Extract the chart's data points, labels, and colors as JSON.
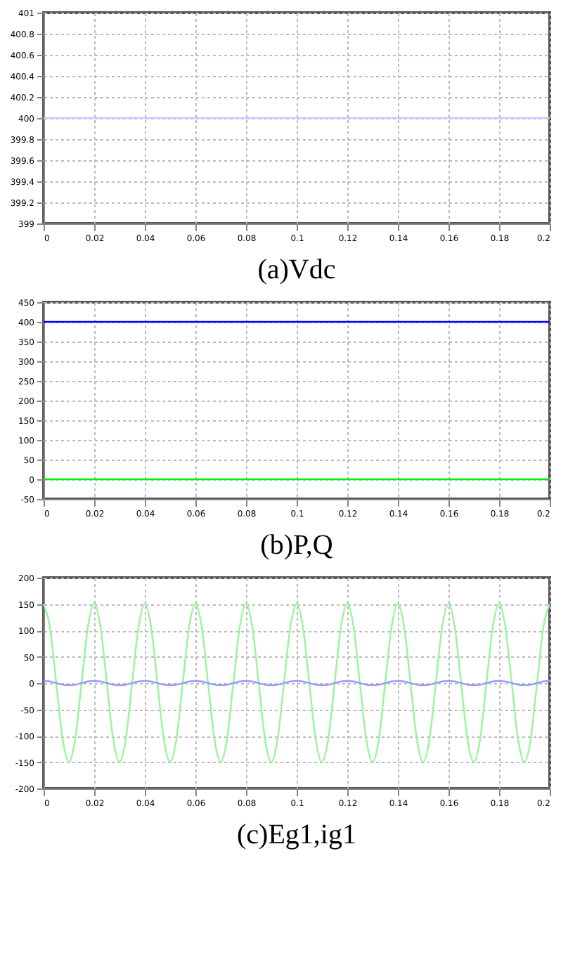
{
  "chart_data": [
    {
      "type": "line",
      "title": "(a)Vdc",
      "grid": true,
      "xlim": [
        0,
        0.2
      ],
      "ylim": [
        399,
        401
      ],
      "xticks": [
        0,
        0.02,
        0.04,
        0.06,
        0.08,
        0.1,
        0.12,
        0.14,
        0.16,
        0.18,
        0.2
      ],
      "yticks": [
        399,
        399.2,
        399.4,
        399.6,
        399.8,
        400,
        400.2,
        400.4,
        400.6,
        400.8,
        401
      ],
      "x": [
        0,
        0.02,
        0.04,
        0.06,
        0.08,
        0.1,
        0.12,
        0.14,
        0.16,
        0.18,
        0.2
      ],
      "series": [
        {
          "color": "#c8c8ff",
          "values": [
            400,
            400,
            400,
            400,
            400,
            400,
            400,
            400,
            400,
            400,
            400
          ]
        }
      ]
    },
    {
      "type": "line",
      "title": "(b)P,Q",
      "grid": true,
      "xlim": [
        0,
        0.2
      ],
      "ylim": [
        -50,
        450
      ],
      "xticks": [
        0,
        0.02,
        0.04,
        0.06,
        0.08,
        0.1,
        0.12,
        0.14,
        0.16,
        0.18,
        0.2
      ],
      "yticks": [
        -50,
        0,
        50,
        100,
        150,
        200,
        250,
        300,
        350,
        400,
        450
      ],
      "x": [
        0,
        0.02,
        0.04,
        0.06,
        0.08,
        0.1,
        0.12,
        0.14,
        0.16,
        0.18,
        0.2
      ],
      "series": [
        {
          "color": "#0000ff",
          "values": [
            400,
            400,
            400,
            400,
            400,
            400,
            400,
            400,
            400,
            400,
            400
          ]
        },
        {
          "color": "#00ee00",
          "values": [
            0,
            0,
            0,
            0,
            0,
            0,
            0,
            0,
            0,
            0,
            0
          ]
        }
      ]
    },
    {
      "type": "line",
      "title": "(c)Eg1,ig1",
      "grid": true,
      "xlim": [
        0,
        0.2
      ],
      "ylim": [
        -200,
        200
      ],
      "xticks": [
        0,
        0.02,
        0.04,
        0.06,
        0.08,
        0.1,
        0.12,
        0.14,
        0.16,
        0.18,
        0.2
      ],
      "yticks": [
        -200,
        -150,
        -100,
        -50,
        0,
        50,
        100,
        150,
        200
      ],
      "x": [
        0,
        0.0025,
        0.005,
        0.0075,
        0.01,
        0.0125,
        0.015,
        0.0175,
        0.02,
        0.0225,
        0.025,
        0.0275,
        0.03,
        0.0325,
        0.035,
        0.0375,
        0.04,
        0.0425,
        0.045,
        0.0475,
        0.05,
        0.0525,
        0.055,
        0.0575,
        0.06,
        0.0625,
        0.065,
        0.0675,
        0.07,
        0.0725,
        0.075,
        0.0775,
        0.08,
        0.0825,
        0.085,
        0.0875,
        0.09,
        0.0925,
        0.095,
        0.0975,
        0.1,
        0.1025,
        0.105,
        0.1075,
        0.11,
        0.1125,
        0.115,
        0.1175,
        0.12,
        0.1225,
        0.125,
        0.1275,
        0.13,
        0.1325,
        0.135,
        0.1375,
        0.14,
        0.1425,
        0.145,
        0.1475,
        0.15,
        0.1525,
        0.155,
        0.1575,
        0.16,
        0.1625,
        0.165,
        0.1675,
        0.17,
        0.1725,
        0.175,
        0.1775,
        0.18,
        0.1825,
        0.185,
        0.1875,
        0.19,
        0.1925,
        0.195,
        0.1975,
        0.2
      ],
      "series": [
        {
          "color": "#99f599",
          "values": [
            150,
            106,
            0,
            -106,
            -150,
            -106,
            0,
            106,
            150,
            106,
            0,
            -106,
            -150,
            -106,
            0,
            106,
            150,
            106,
            0,
            -106,
            -150,
            -106,
            0,
            106,
            150,
            106,
            0,
            -106,
            -150,
            -106,
            0,
            106,
            150,
            106,
            0,
            -106,
            -150,
            -106,
            0,
            106,
            150,
            106,
            0,
            -106,
            -150,
            -106,
            0,
            106,
            150,
            106,
            0,
            -106,
            -150,
            -106,
            0,
            106,
            150,
            106,
            0,
            -106,
            -150,
            -106,
            0,
            106,
            150,
            106,
            0,
            -106,
            -150,
            -106,
            0,
            106,
            150,
            106,
            0,
            -106,
            -150,
            -106,
            0,
            106,
            150
          ]
        },
        {
          "color": "#9999ff",
          "values": [
            4,
            3,
            0,
            -3,
            -4,
            -3,
            0,
            3,
            4,
            3,
            0,
            -3,
            -4,
            -3,
            0,
            3,
            4,
            3,
            0,
            -3,
            -4,
            -3,
            0,
            3,
            4,
            3,
            0,
            -3,
            -4,
            -3,
            0,
            3,
            4,
            3,
            0,
            -3,
            -4,
            -3,
            0,
            3,
            4,
            3,
            0,
            -3,
            -4,
            -3,
            0,
            3,
            4,
            3,
            0,
            -3,
            -4,
            -3,
            0,
            3,
            4,
            3,
            0,
            -3,
            -4,
            -3,
            0,
            3,
            4,
            3,
            0,
            -3,
            -4,
            -3,
            0,
            3,
            4,
            3,
            0,
            -3,
            -4,
            -3,
            0,
            3,
            4
          ]
        }
      ]
    }
  ]
}
